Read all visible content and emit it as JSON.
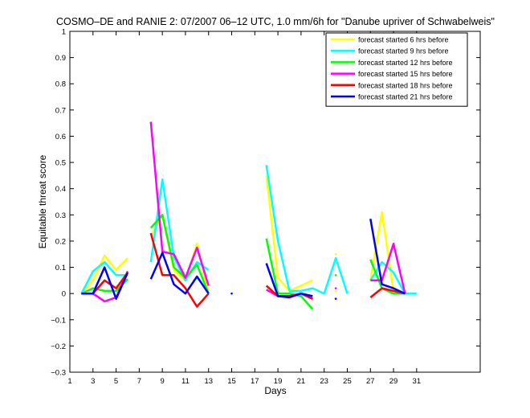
{
  "chart_data": {
    "type": "line",
    "title": "COSMO–DE and RANIE 2: 07/2007 06–12 UTC, 1.0 mm/6h for \"Danube upriver of Schwabelweis\"",
    "xlabel": "Days",
    "ylabel": "Equitable threat score",
    "xlim": [
      1,
      36.5
    ],
    "ylim": [
      -0.3,
      1
    ],
    "xticks": [
      1,
      3,
      5,
      7,
      9,
      11,
      13,
      15,
      17,
      19,
      21,
      23,
      25,
      27,
      29,
      31
    ],
    "yticks": [
      -0.3,
      -0.2,
      -0.1,
      0,
      0.1,
      0.2,
      0.3,
      0.4,
      0.5,
      0.6,
      0.7,
      0.8,
      0.9,
      1
    ],
    "ytick_labels": [
      "−0.3",
      "−0.2",
      "−0.1",
      "0",
      "0.1",
      "0.2",
      "0.3",
      "0.4",
      "0.5",
      "0.6",
      "0.7",
      "0.8",
      "0.9",
      "1"
    ],
    "legend_position": "top-right",
    "grid": false,
    "series": [
      {
        "name": "forecast started 6 hrs before",
        "color": "#ffff00",
        "segments": [
          [
            [
              2,
              0
            ],
            [
              3,
              0.05
            ],
            [
              4,
              0.145
            ],
            [
              5,
              0.09
            ],
            [
              6,
              0.135
            ]
          ],
          [
            [
              8,
              0.22
            ],
            [
              9,
              0.3
            ],
            [
              10,
              0.09
            ],
            [
              11,
              0.05
            ],
            [
              12,
              0.19
            ],
            [
              13,
              0
            ]
          ],
          [
            [
              18,
              0.45
            ],
            [
              19,
              0.06
            ],
            [
              20,
              0.01
            ],
            [
              21,
              0.03
            ],
            [
              22,
              0.05
            ]
          ],
          [
            [
              27,
              0.05
            ],
            [
              28,
              0.31
            ],
            [
              29,
              0.01
            ],
            [
              30,
              0
            ]
          ]
        ],
        "points": [
          [
            24,
            0.15
          ],
          [
            24,
            0.01
          ]
        ]
      },
      {
        "name": "forecast started 9 hrs before",
        "color": "#00ffff",
        "segments": [
          [
            [
              2,
              0
            ],
            [
              3,
              0.085
            ],
            [
              4,
              0.12
            ],
            [
              5,
              0.07
            ],
            [
              6,
              0.07
            ]
          ],
          [
            [
              8,
              0.12
            ],
            [
              9,
              0.435
            ],
            [
              10,
              0.14
            ],
            [
              11,
              0.05
            ],
            [
              12,
              0.12
            ],
            [
              13,
              0.09
            ]
          ],
          [
            [
              18,
              0.49
            ],
            [
              19,
              0.2
            ],
            [
              20,
              0.01
            ],
            [
              21,
              0.01
            ],
            [
              22,
              0.02
            ],
            [
              23,
              0
            ],
            [
              24,
              0.135
            ],
            [
              25,
              0
            ]
          ],
          [
            [
              27,
              0.05
            ],
            [
              28,
              0.12
            ],
            [
              29,
              0.08
            ],
            [
              30,
              0
            ],
            [
              31,
              0
            ]
          ]
        ],
        "points": []
      },
      {
        "name": "forecast started 12 hrs before",
        "color": "#00ff00",
        "segments": [
          [
            [
              2,
              0
            ],
            [
              3,
              0.02
            ],
            [
              4,
              0.01
            ],
            [
              5,
              0.01
            ],
            [
              6,
              0.055
            ]
          ],
          [
            [
              8,
              0.25
            ],
            [
              9,
              0.3
            ],
            [
              10,
              0.1
            ],
            [
              11,
              0.06
            ],
            [
              12,
              0.11
            ],
            [
              13,
              0
            ]
          ],
          [
            [
              18,
              0.21
            ],
            [
              19,
              0
            ],
            [
              20,
              0
            ],
            [
              21,
              -0.01
            ],
            [
              22,
              -0.06
            ]
          ],
          [
            [
              27,
              0.13
            ],
            [
              28,
              0.02
            ],
            [
              29,
              0
            ],
            [
              30,
              0
            ]
          ]
        ],
        "points": [
          [
            24,
            0.07
          ]
        ]
      },
      {
        "name": "forecast started 15 hrs before",
        "color": "#ff00ff",
        "segments": [
          [
            [
              2,
              0
            ],
            [
              3,
              0
            ],
            [
              4,
              -0.03
            ],
            [
              5,
              -0.015
            ],
            [
              6,
              0.085
            ]
          ],
          [
            [
              8,
              0.655
            ],
            [
              9,
              0.16
            ],
            [
              10,
              0.15
            ],
            [
              11,
              0.06
            ],
            [
              12,
              0.175
            ],
            [
              13,
              0.03
            ]
          ],
          [
            [
              18,
              0.015
            ],
            [
              19,
              -0.01
            ],
            [
              20,
              -0.01
            ],
            [
              21,
              0
            ],
            [
              22,
              -0.02
            ]
          ],
          [
            [
              27,
              0.05
            ],
            [
              28,
              0.05
            ],
            [
              29,
              0.19
            ],
            [
              30,
              0
            ]
          ]
        ],
        "points": [
          [
            24,
            0.02
          ]
        ]
      },
      {
        "name": "forecast started 18 hrs before",
        "color": "#ff0000",
        "segments": [
          [
            [
              2,
              0
            ],
            [
              3,
              0
            ],
            [
              4,
              0.05
            ],
            [
              5,
              0.02
            ],
            [
              6,
              0.08
            ]
          ],
          [
            [
              8,
              0.23
            ],
            [
              9,
              0.07
            ],
            [
              10,
              0.07
            ],
            [
              11,
              0.02
            ],
            [
              12,
              -0.05
            ],
            [
              13,
              0
            ]
          ],
          [
            [
              18,
              0.03
            ],
            [
              19,
              -0.01
            ],
            [
              20,
              -0.01
            ],
            [
              21,
              0
            ],
            [
              22,
              -0.02
            ]
          ],
          [
            [
              27,
              -0.015
            ],
            [
              28,
              0.02
            ],
            [
              29,
              0.01
            ],
            [
              30,
              0
            ]
          ]
        ],
        "points": []
      },
      {
        "name": "forecast started 21 hrs before",
        "color": "#0000ff",
        "segments": [
          [
            [
              2,
              0
            ],
            [
              3,
              0
            ],
            [
              4,
              0.1
            ],
            [
              5,
              -0.02
            ],
            [
              6,
              0.08
            ]
          ],
          [
            [
              8,
              0.055
            ],
            [
              9,
              0.155
            ],
            [
              10,
              0.035
            ],
            [
              11,
              0
            ],
            [
              12,
              0.065
            ],
            [
              13,
              0
            ]
          ],
          [
            [
              18,
              0.115
            ],
            [
              19,
              -0.01
            ],
            [
              20,
              -0.015
            ],
            [
              21,
              0
            ],
            [
              22,
              -0.01
            ]
          ],
          [
            [
              27,
              0.285
            ],
            [
              28,
              0.035
            ],
            [
              29,
              0.02
            ],
            [
              30,
              0
            ]
          ]
        ],
        "points": [
          [
            15,
            0
          ],
          [
            24,
            -0.02
          ]
        ]
      }
    ]
  }
}
